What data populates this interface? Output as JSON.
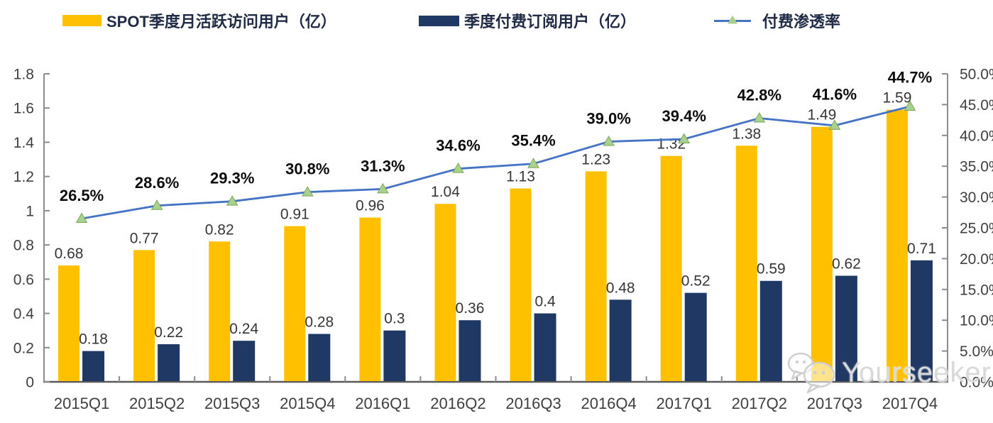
{
  "chart_data": {
    "type": "combo",
    "title": "",
    "legend_position": "top",
    "grid": false,
    "categories": [
      "2015Q1",
      "2015Q2",
      "2015Q3",
      "2015Q4",
      "2016Q1",
      "2016Q2",
      "2016Q3",
      "2016Q4",
      "2017Q1",
      "2017Q2",
      "2017Q3",
      "2017Q4"
    ],
    "series": [
      {
        "name": "SPOT季度月活跃访问用户（亿）",
        "type": "bar",
        "axis": "left",
        "color": "#FFC000",
        "values": [
          0.68,
          0.77,
          0.82,
          0.91,
          0.96,
          1.04,
          1.13,
          1.23,
          1.32,
          1.38,
          1.49,
          1.59
        ],
        "labels": [
          "0.68",
          "0.77",
          "0.82",
          "0.91",
          "0.96",
          "1.04",
          "1.13",
          "1.23",
          "1.32",
          "1.38",
          "1.49",
          "1.59"
        ]
      },
      {
        "name": "季度付费订阅用户（亿）",
        "type": "bar",
        "axis": "left",
        "color": "#1F3864",
        "values": [
          0.18,
          0.22,
          0.24,
          0.28,
          0.3,
          0.36,
          0.4,
          0.48,
          0.52,
          0.59,
          0.62,
          0.71
        ],
        "labels": [
          "0.18",
          "0.22",
          "0.24",
          "0.28",
          "0.3",
          "0.36",
          "0.4",
          "0.48",
          "0.52",
          "0.59",
          "0.62",
          "0.71"
        ]
      },
      {
        "name": "付费渗透率",
        "type": "line",
        "axis": "right",
        "color": "#4472C4",
        "marker": "triangle",
        "marker_color": "#A9D18E",
        "values": [
          26.5,
          28.6,
          29.3,
          30.8,
          31.3,
          34.6,
          35.4,
          39.0,
          39.4,
          42.8,
          41.6,
          44.7
        ],
        "labels": [
          "26.5%",
          "28.6%",
          "29.3%",
          "30.8%",
          "31.3%",
          "34.6%",
          "35.4%",
          "39.0%",
          "39.4%",
          "42.8%",
          "41.6%",
          "44.7%"
        ]
      }
    ],
    "left_axis": {
      "min": 0,
      "max": 1.8,
      "step": 0.2,
      "ticks": [
        "0",
        "0.2",
        "0.4",
        "0.6",
        "0.8",
        "1",
        "1.2",
        "1.4",
        "1.6",
        "1.8"
      ]
    },
    "right_axis": {
      "min": 0,
      "max": 50,
      "step": 5,
      "ticks": [
        "0.0%",
        "5.0%",
        "10.0%",
        "15.0%",
        "20.0%",
        "25.0%",
        "30.0%",
        "35.0%",
        "40.0%",
        "45.0%",
        "50.0%"
      ]
    }
  },
  "colors": {
    "axis_line": "#8C8C8C",
    "baseline": "#595959",
    "axis_text": "#3F3F3F",
    "bar_label_text": "#363636",
    "percent_label_text": "#0D0D0D",
    "legend_text": "#1F2A44",
    "marker_edge": "#7CA75B",
    "watermark": "#D9D9D9"
  },
  "watermark": {
    "text": "Yourseeker",
    "icon": "chat-bubbles-icon"
  }
}
